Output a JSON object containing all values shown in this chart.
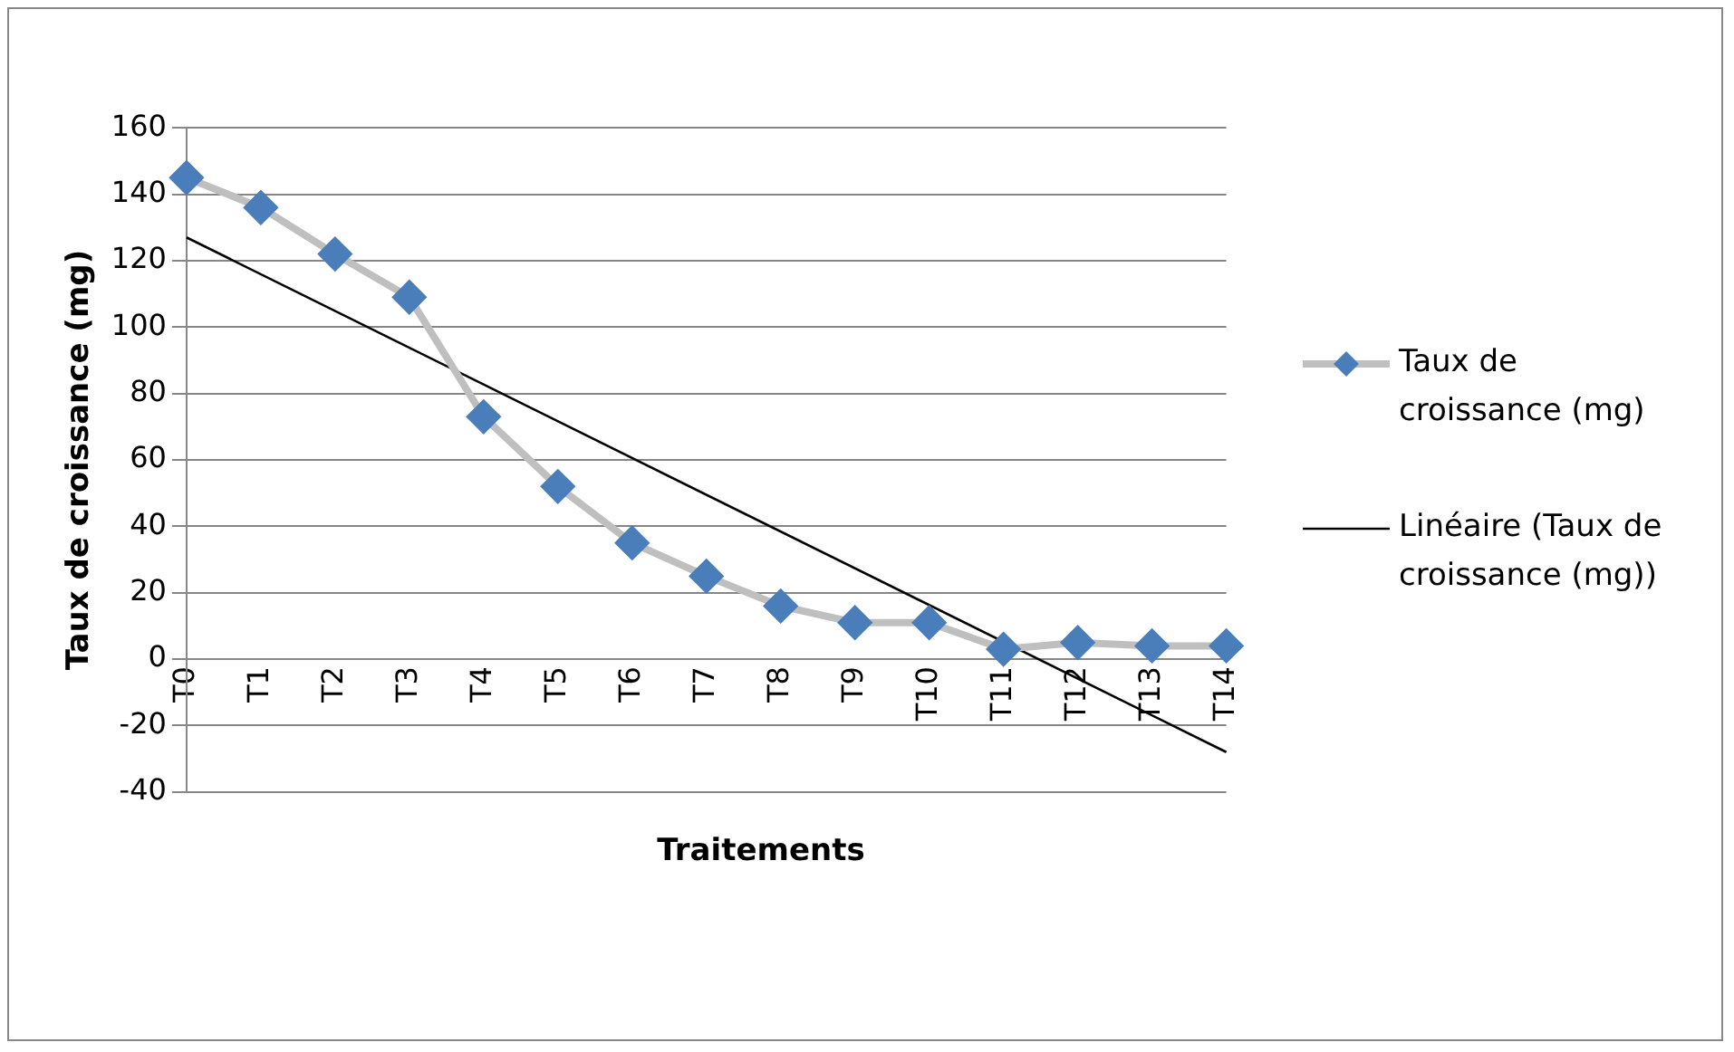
{
  "chart_data": {
    "type": "line",
    "xlabel": "Traitements",
    "ylabel": "Taux de croissance (mg)",
    "categories": [
      "T0",
      "T1",
      "T2",
      "T3",
      "T4",
      "T5",
      "T6",
      "T7",
      "T8",
      "T9",
      "T10",
      "T11",
      "T12",
      "T13",
      "T14"
    ],
    "series": [
      {
        "name": "Taux de croissance (mg)",
        "color": "#4a7ebb",
        "marker": "diamond",
        "values": [
          145,
          136,
          122,
          109,
          73,
          52,
          35,
          25,
          16,
          11,
          11,
          3,
          5,
          4,
          4
        ]
      },
      {
        "name": "Linéaire (Taux de croissance (mg))",
        "type": "line",
        "color": "#000000",
        "marker": "none",
        "x": [
          "T0",
          "T14"
        ],
        "values": [
          127,
          -28
        ]
      }
    ],
    "ylim": [
      -40,
      160
    ],
    "yticks": [
      -40,
      -20,
      0,
      20,
      40,
      60,
      80,
      100,
      120,
      140,
      160
    ],
    "grid": "y",
    "legend": "right"
  }
}
